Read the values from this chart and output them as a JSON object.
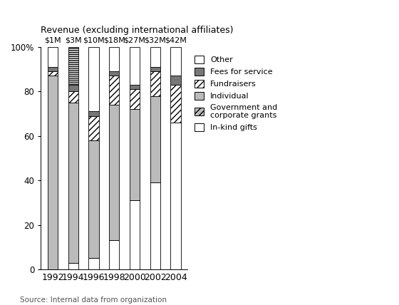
{
  "years": [
    "1992",
    "1994",
    "1996",
    "1998",
    "2000",
    "2002",
    "2004"
  ],
  "revenue_labels": [
    "$1M",
    "$3M",
    "$10M",
    "$18M",
    "$27M",
    "$32M",
    "$42M"
  ],
  "segments_order": [
    "In-kind gifts",
    "Government and corporate grants",
    "Individual",
    "Fundraisers",
    "Fees for service",
    "Other"
  ],
  "values": {
    "In-kind gifts": [
      0,
      3,
      5,
      13,
      31,
      39,
      66
    ],
    "Government and corporate grants": [
      0,
      0,
      0,
      0,
      0,
      0,
      0
    ],
    "Individual": [
      87,
      72,
      53,
      61,
      41,
      39,
      0
    ],
    "Fundraisers": [
      2,
      5,
      11,
      13,
      9,
      11,
      17
    ],
    "Fees for service": [
      2,
      3,
      2,
      2,
      2,
      2,
      4
    ],
    "Other": [
      9,
      17,
      29,
      11,
      17,
      9,
      13
    ]
  },
  "styles": [
    {
      "name": "In-kind gifts",
      "color": "#ffffff",
      "hatch": "",
      "edgecolor": "#000000"
    },
    {
      "name": "Government and corporate grants",
      "color": "#bbbbbb",
      "hatch": "////",
      "edgecolor": "#000000"
    },
    {
      "name": "Individual",
      "color": "#bbbbbb",
      "hatch": "",
      "edgecolor": "#000000"
    },
    {
      "name": "Fundraisers",
      "color": "#ffffff",
      "hatch": "////",
      "edgecolor": "#000000"
    },
    {
      "name": "Fees for service",
      "color": "#777777",
      "hatch": "",
      "edgecolor": "#000000"
    },
    {
      "name": "Other",
      "color": "#ffffff",
      "hatch": "",
      "edgecolor": "#000000"
    }
  ],
  "title": "Revenue (excluding international affiliates)",
  "source": "Source: Internal data from organization",
  "ylim": [
    0,
    100
  ],
  "bar_width": 0.5,
  "figsize": [
    5.6,
    4.28
  ],
  "dpi": 100,
  "legend": [
    {
      "label": "Other",
      "color": "#ffffff",
      "hatch": ""
    },
    {
      "label": "Fees for service",
      "color": "#777777",
      "hatch": ""
    },
    {
      "label": "Fundraisers",
      "color": "#ffffff",
      "hatch": "////"
    },
    {
      "label": "Individual",
      "color": "#bbbbbb",
      "hatch": ""
    },
    {
      "label": "Government and\ncorporate grants",
      "color": "#bbbbbb",
      "hatch": "////"
    },
    {
      "label": "In-kind gifts",
      "color": "#ffffff",
      "hatch": ""
    }
  ]
}
